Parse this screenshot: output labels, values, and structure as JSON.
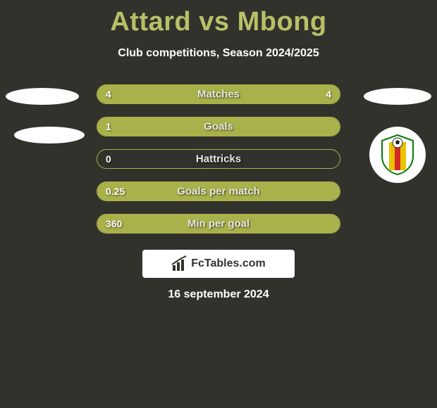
{
  "header": {
    "title": "Attard vs Mbong",
    "subtitle": "Club competitions, Season 2024/2025"
  },
  "stats": {
    "rows": [
      {
        "label": "Matches",
        "left": "4",
        "right": "4",
        "left_fill_pct": 50,
        "right_fill_pct": 50
      },
      {
        "label": "Goals",
        "left": "1",
        "right": "",
        "left_fill_pct": 100,
        "right_fill_pct": 0
      },
      {
        "label": "Hattricks",
        "left": "0",
        "right": "",
        "left_fill_pct": 0,
        "right_fill_pct": 0
      },
      {
        "label": "Goals per match",
        "left": "0.25",
        "right": "",
        "left_fill_pct": 100,
        "right_fill_pct": 0
      },
      {
        "label": "Min per goal",
        "left": "360",
        "right": "",
        "left_fill_pct": 100,
        "right_fill_pct": 0
      }
    ],
    "pill_border_color": "#a9b14a",
    "fill_color": "#a9b14a",
    "label_fontsize": 15,
    "value_fontsize": 14
  },
  "watermark": {
    "text": "FcTables.com"
  },
  "date": {
    "text": "16 september 2024"
  },
  "style": {
    "background": "#31322c",
    "title_color": "#b7c067",
    "title_fontsize": 38,
    "subtitle_fontsize": 16,
    "text_color": "#ffffff"
  },
  "badge": {
    "name": "club-badge",
    "stripe_colors": [
      "#e8c400",
      "#d62828"
    ],
    "ball_color": "#222222"
  }
}
